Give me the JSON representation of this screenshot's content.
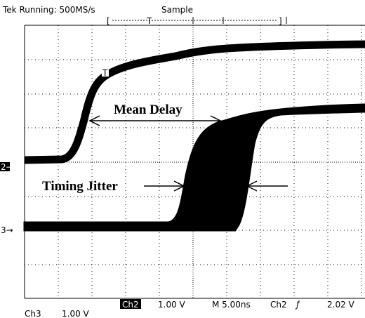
{
  "header": {
    "status": "Tek Running: 500MS/s",
    "mode": "Sample",
    "trigger_marker": "T"
  },
  "screen": {
    "channel2_marker": "2→",
    "channel3_marker": "3→",
    "trigger_point_marker": "T"
  },
  "annotations": {
    "mean_delay": "Mean Delay",
    "timing_jitter": "Timing Jitter"
  },
  "footer": {
    "ch2_label": "Ch2",
    "ch2_scale": "1.00 V",
    "timebase": "M 5.00ns",
    "trigger_source": "Ch2",
    "trigger_slope": "ƒ",
    "trigger_level": "2.02 V",
    "ch3_label": "Ch3",
    "ch3_scale": "1.00 V"
  }
}
